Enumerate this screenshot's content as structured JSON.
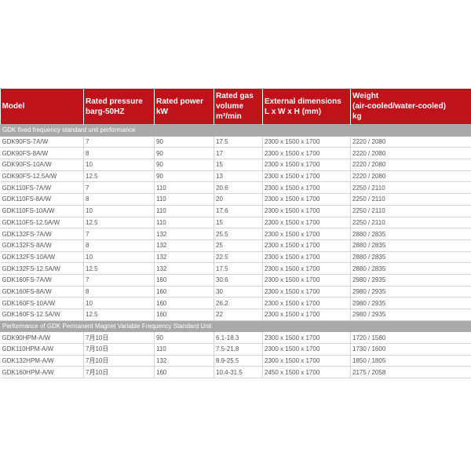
{
  "table": {
    "header": [
      [
        "Model"
      ],
      [
        "Rated pressure",
        "barg-50HZ"
      ],
      [
        "Rated power",
        "kW"
      ],
      [
        "Rated gas",
        "volume",
        "m³/min"
      ],
      [
        "External dimensions",
        "L x W x H (mm)"
      ],
      [
        "Weight",
        " (air-cooled/water-cooled)",
        "kg"
      ]
    ],
    "sections": [
      {
        "title": "GDK fixed frequency standard unit performance",
        "rows": [
          [
            "GDK90FS-7A/W",
            "7",
            "90",
            "17.5",
            "2300 x 1500 x 1700",
            "2220 / 2080"
          ],
          [
            "GDK90FS-8A/W",
            "8",
            "90",
            "17",
            "2300 x 1500 x 1700",
            "2220 / 2080"
          ],
          [
            "GDK90FS-10A/W",
            "10",
            "90",
            "15",
            "2300 x 1500 x 1700",
            "2220 / 2080"
          ],
          [
            "GDK90FS-12.5A/W",
            "12.5",
            "90",
            "13",
            "2300 x 1500 x 1700",
            "2220 / 2080"
          ],
          [
            "GDK110FS-7A/W",
            "7",
            "110",
            "20.6",
            "2300 x 1500 x 1700",
            "2250 / 2110"
          ],
          [
            "GDK110FS-8A/W",
            "8",
            "110",
            "20",
            "2300 x 1500 x 1700",
            "2250 / 2110"
          ],
          [
            "GDK110FS-10A/W",
            "10",
            "110",
            "17.6",
            "2300 x 1500 x 1700",
            "2250 / 2110"
          ],
          [
            "GDK110FS-12.5A/W",
            "12.5",
            "110",
            "15",
            "2300 x 1500 x 1700",
            "2250 / 2110"
          ],
          [
            "GDK132FS-7A/W",
            "7",
            "132",
            "25.5",
            "2300 x 1500 x 1700",
            "2880 / 2835"
          ],
          [
            "GDK132FS-8A/W",
            "8",
            "132",
            "25",
            "2300 x 1500 x 1700",
            "2880 / 2835"
          ],
          [
            "GDK132FS-10A/W",
            "10",
            "132",
            "22.5",
            "2300 x 1500 x 1700",
            "2880 / 2835"
          ],
          [
            "GDK132FS-12.5A/W",
            "12.5",
            "132",
            "17.5",
            "2300 x 1500 x 1700",
            "2880 / 2835"
          ],
          [
            "GDK160FS-7A/W",
            "7",
            "160",
            "30.6",
            "2300 x 1500 x 1700",
            "2980 / 2935"
          ],
          [
            "GDK160FS-8A/W",
            "8",
            "160",
            "30",
            "2300 x 1500 x 1700",
            "2980 / 2935"
          ],
          [
            "GDK160FS-10A/W",
            "10",
            "160",
            "26.2",
            "2300 x 1500 x 1700",
            "2980 / 2935"
          ],
          [
            "GDK160FS-12.5A/W",
            "12.5",
            "160",
            "22",
            "2300 x 1500 x 1700",
            "2980 / 2935"
          ]
        ]
      },
      {
        "title": "Performance of GDK Permanent Magnet Variable Frequency Standard Unit",
        "rows": [
          [
            "GDK90HPM-A/W",
            "7月10日",
            "90",
            "6.1-18.3",
            "2300 x 1500 x 1700",
            "1720 / 1580"
          ],
          [
            "GDK110HPM-A/W",
            "7月10日",
            "110",
            "7.5-21.8",
            "2300 x 1500 x 1700",
            "1730 / 1600"
          ],
          [
            "GDK132HPM-A/W",
            "7月10日",
            "132",
            "8.9-25.5",
            "2300 x 1500 x 1700",
            "1850 / 1805"
          ],
          [
            "GDK160HPM-A/W",
            "7月10日",
            "160",
            "10.4-31.5",
            "2450 x 1500 x 1700",
            "2175 / 2058"
          ]
        ]
      }
    ]
  }
}
